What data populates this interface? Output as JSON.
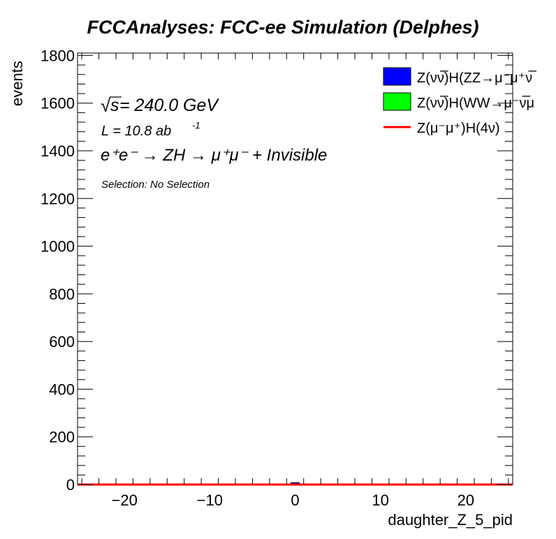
{
  "chart_data": {
    "type": "bar",
    "title": "FCCAnalyses: FCC-ee Simulation (Delphes)",
    "xlabel": "daughter_Z_5_pid",
    "ylabel": "events",
    "xlim": [
      -25.5,
      25.5
    ],
    "ylim": [
      0,
      1810
    ],
    "x_ticks": [
      -20,
      -10,
      0,
      10,
      20
    ],
    "x_tick_labels": [
      "−20",
      "−10",
      "0",
      "10",
      "20"
    ],
    "y_ticks": [
      0,
      200,
      400,
      600,
      800,
      1000,
      1200,
      1400,
      1600,
      1800
    ],
    "y_tick_labels": [
      "0",
      "200",
      "400",
      "600",
      "800",
      "1000",
      "1200",
      "1400",
      "1600",
      "1800"
    ],
    "grid": false,
    "legend_position": "top-right",
    "series": [
      {
        "name": "Z(νν̅)H(ZZ→μ⁻μ⁺ν̅",
        "kind": "filled",
        "color": "#0000ff",
        "bins": [
          {
            "x0": -0.5,
            "x1": 0.5,
            "value": 8
          }
        ]
      },
      {
        "name": "Z(νν̅)H(WW→μ⁻ν̅μ",
        "kind": "filled",
        "color": "#00ff00",
        "bins": []
      },
      {
        "name": "Z(μ⁻μ⁺)H(4ν)",
        "kind": "line",
        "color": "#ff0000",
        "bins": [
          {
            "x0": -25.5,
            "x1": 25.5,
            "value": 0
          }
        ]
      }
    ],
    "annotations": {
      "sqrt_symbol": "√",
      "sqrt_s": "s",
      "energy": " = 240.0 GeV",
      "lumi_base": "L = 10.8 ab",
      "lumi_exp": "-1",
      "process": "e⁺e⁻ → ZH → μ⁺μ⁻ + Invisible",
      "selection": "Selection: No Selection"
    }
  }
}
